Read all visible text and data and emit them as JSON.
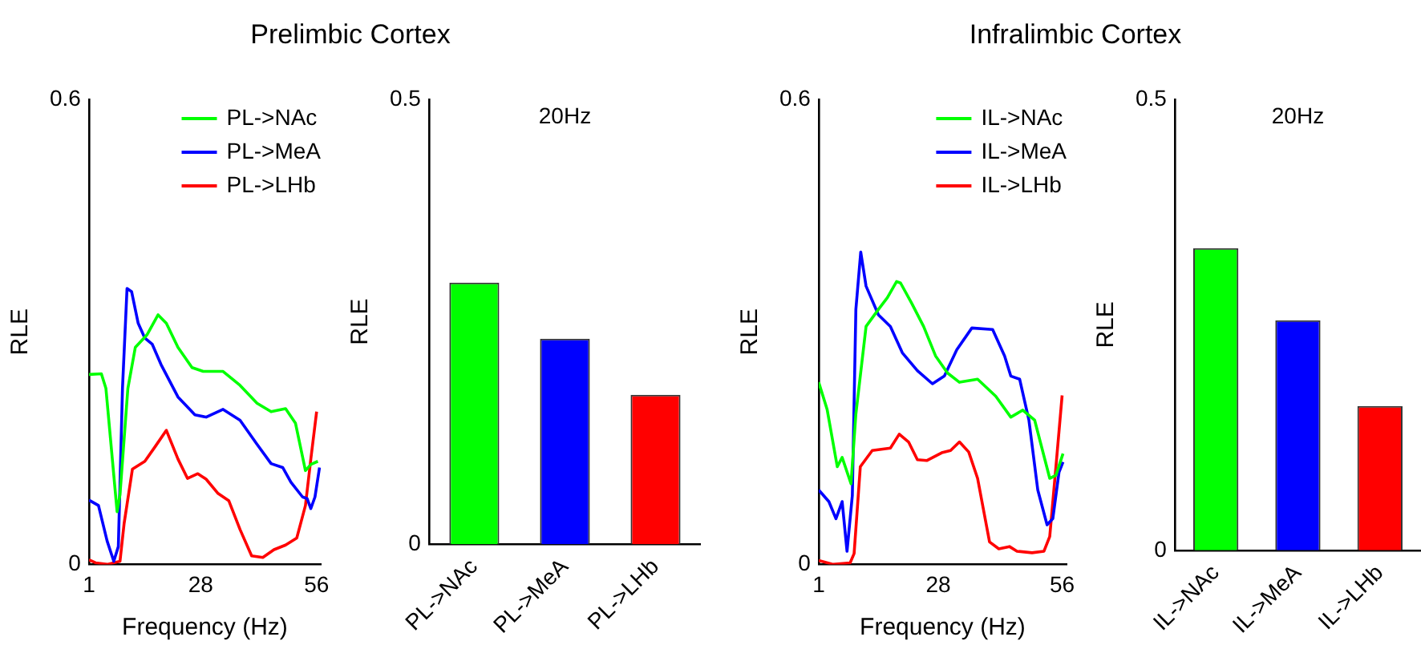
{
  "chart_data": [
    {
      "type": "line",
      "title": "Prelimbic Cortex",
      "xlabel": "Frequency (Hz)",
      "ylabel": "RLE",
      "xlim": [
        1,
        57
      ],
      "xticks": [
        1,
        28,
        56
      ],
      "ylim": [
        0,
        0.6
      ],
      "yticks": [
        0,
        0.6
      ],
      "grid": false,
      "legend": "top right",
      "marker": "none",
      "line_style": "solid",
      "series": [
        {
          "name": "PL->NAc",
          "color": "#00ff00",
          "x": [
            1,
            4,
            5.1,
            7.8,
            8.5,
            10.4,
            12.2,
            15,
            17.7,
            19.7,
            22.5,
            25.9,
            28.6,
            33.4,
            37.5,
            41.6,
            45,
            48.5,
            50.9,
            53.3,
            54.6,
            56.3
          ],
          "values": [
            0.245,
            0.246,
            0.227,
            0.068,
            0.09,
            0.227,
            0.28,
            0.296,
            0.322,
            0.311,
            0.28,
            0.254,
            0.249,
            0.249,
            0.231,
            0.208,
            0.197,
            0.201,
            0.182,
            0.121,
            0.129,
            0.133
          ]
        },
        {
          "name": "PL->MeA",
          "color": "#0000ff",
          "x": [
            1,
            3.3,
            5.4,
            7,
            8.1,
            9.1,
            10.2,
            11.3,
            12.9,
            14.5,
            16.3,
            18.4,
            22.5,
            26.6,
            29.3,
            33.4,
            37.5,
            41.6,
            45,
            47.8,
            49.8,
            52.6,
            53.7,
            54.6,
            55.6,
            56.7
          ],
          "values": [
            0.083,
            0.076,
            0.03,
            0.004,
            0.023,
            0.227,
            0.356,
            0.352,
            0.311,
            0.292,
            0.284,
            0.258,
            0.216,
            0.193,
            0.19,
            0.2,
            0.186,
            0.155,
            0.13,
            0.125,
            0.106,
            0.087,
            0.085,
            0.072,
            0.087,
            0.125
          ]
        },
        {
          "name": "PL->LHb",
          "color": "#ff0000",
          "x": [
            1,
            2.6,
            5.4,
            8.5,
            9.5,
            11.5,
            14.5,
            17,
            19.7,
            22.5,
            24.8,
            27.3,
            29.3,
            32.1,
            34.8,
            37.5,
            40.3,
            43,
            45.7,
            48.5,
            51.2,
            53.3,
            54.6,
            56
          ],
          "values": [
            0.006,
            0.002,
            0,
            0.004,
            0.053,
            0.123,
            0.133,
            0.152,
            0.173,
            0.136,
            0.111,
            0.117,
            0.11,
            0.092,
            0.082,
            0.045,
            0.011,
            0.009,
            0.019,
            0.025,
            0.034,
            0.076,
            0.136,
            0.197
          ]
        }
      ]
    },
    {
      "type": "bar",
      "ylabel": "RLE",
      "annotations": [
        "20Hz"
      ],
      "categories": [
        "PL->NAc",
        "PL->MeA",
        "PL->LHb"
      ],
      "values": [
        0.294,
        0.231,
        0.168
      ],
      "colors": [
        "#00ff00",
        "#0000ff",
        "#ff0000"
      ],
      "ylim": [
        0,
        0.5
      ],
      "yticks": [
        0,
        0.5
      ],
      "grid": false
    },
    {
      "type": "line",
      "title": "Infralimbic Cortex",
      "xlabel": "Frequency (Hz)",
      "ylabel": "RLE",
      "xlim": [
        1,
        57
      ],
      "xticks": [
        1,
        28,
        56
      ],
      "ylim": [
        0,
        0.6
      ],
      "yticks": [
        0,
        0.6
      ],
      "grid": false,
      "legend": "top right",
      "marker": "none",
      "line_style": "solid",
      "series": [
        {
          "name": "IL->NAc",
          "color": "#00ff00",
          "x": [
            1,
            2.9,
            5.2,
            6.3,
            8.3,
            9.4,
            11.7,
            14.5,
            16.5,
            18.6,
            19.5,
            22,
            24.7,
            27.4,
            30.1,
            32.8,
            36.9,
            41,
            44.4,
            47.1,
            49.8,
            53.2,
            54.6,
            56.2
          ],
          "values": [
            0.235,
            0.2,
            0.126,
            0.138,
            0.104,
            0.194,
            0.307,
            0.329,
            0.344,
            0.365,
            0.363,
            0.337,
            0.307,
            0.269,
            0.247,
            0.235,
            0.239,
            0.217,
            0.19,
            0.199,
            0.186,
            0.111,
            0.115,
            0.143
          ]
        },
        {
          "name": "IL->MeA",
          "color": "#0000ff",
          "x": [
            1,
            3.3,
            4.9,
            6.3,
            7.4,
            8.6,
            9.4,
            10.5,
            11.7,
            14.5,
            17.2,
            19.9,
            23.3,
            26.7,
            29.4,
            32.2,
            35.6,
            40.3,
            43,
            44.4,
            46.4,
            48.5,
            50.5,
            52.6,
            53.9,
            55.3,
            56.2
          ],
          "values": [
            0.096,
            0.081,
            0.059,
            0.081,
            0.017,
            0.089,
            0.329,
            0.403,
            0.359,
            0.322,
            0.307,
            0.273,
            0.25,
            0.233,
            0.243,
            0.277,
            0.305,
            0.303,
            0.269,
            0.243,
            0.239,
            0.186,
            0.096,
            0.051,
            0.059,
            0.119,
            0.132
          ]
        },
        {
          "name": "IL->LHb",
          "color": "#ff0000",
          "x": [
            1,
            4.3,
            8.1,
            9,
            10.4,
            13.1,
            17.2,
            19.2,
            21.3,
            23.3,
            25.4,
            28.8,
            30.8,
            32.8,
            34.9,
            36.9,
            39.6,
            41.7,
            44.1,
            45.8,
            49.2,
            51.9,
            53.2,
            54.6,
            56
          ],
          "values": [
            0.005,
            0,
            0.002,
            0.014,
            0.126,
            0.147,
            0.15,
            0.168,
            0.158,
            0.135,
            0.134,
            0.144,
            0.147,
            0.158,
            0.145,
            0.111,
            0.029,
            0.02,
            0.023,
            0.017,
            0.015,
            0.017,
            0.036,
            0.126,
            0.218
          ]
        }
      ]
    },
    {
      "type": "bar",
      "ylabel": "RLE",
      "annotations": [
        "20Hz"
      ],
      "categories": [
        "IL->NAc",
        "IL->MeA",
        "IL->LHb"
      ],
      "values": [
        0.335,
        0.255,
        0.16
      ],
      "colors": [
        "#00ff00",
        "#0000ff",
        "#ff0000"
      ],
      "ylim": [
        0,
        0.5
      ],
      "yticks": [
        0,
        0.5
      ],
      "grid": false
    }
  ]
}
